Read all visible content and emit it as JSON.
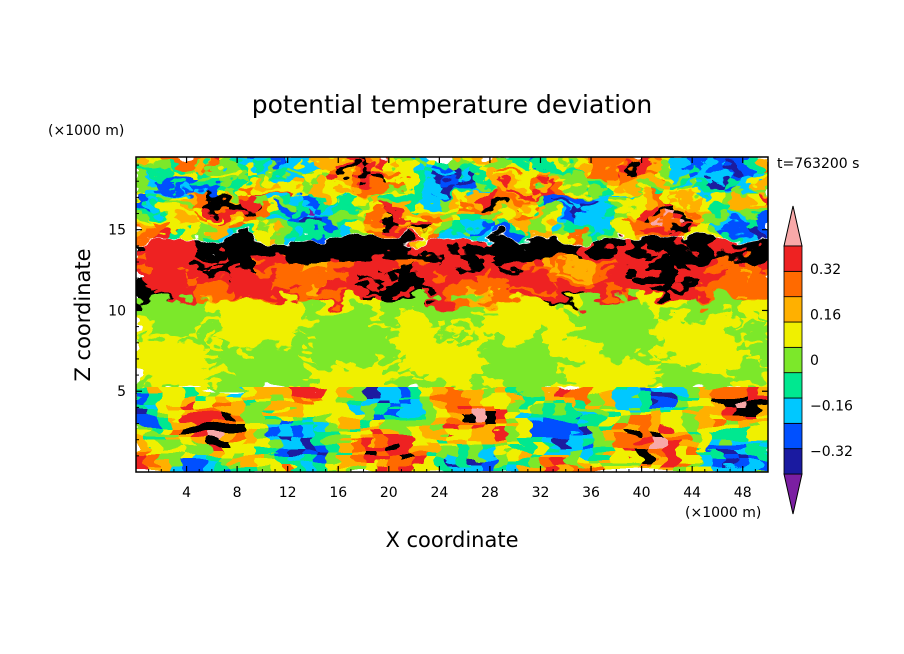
{
  "chart_data": {
    "type": "heatmap",
    "title": "potential temperature deviation",
    "xlabel": "X coordinate",
    "ylabel": "Z coordinate",
    "x_unit": "(×1000 m)",
    "y_unit": "(×1000 m)",
    "time_label": "t=763200 s",
    "xlim": [
      0,
      50
    ],
    "ylim": [
      0,
      19.5
    ],
    "x_ticks": [
      4,
      8,
      12,
      16,
      20,
      24,
      28,
      32,
      36,
      40,
      44,
      48
    ],
    "y_ticks": [
      5,
      10,
      15
    ],
    "colorbar": {
      "levels": [
        -0.4,
        -0.32,
        -0.24,
        -0.16,
        -0.08,
        0,
        0.08,
        0.16,
        0.24,
        0.32,
        0.4
      ],
      "tick_values": [
        0.32,
        0.16,
        0,
        -0.16,
        -0.32
      ],
      "tick_labels": [
        "0.32",
        "0.16",
        "0",
        "−0.16",
        "−0.32"
      ],
      "under_color": "#7b1fa2",
      "over_color": "#f8a8a8",
      "colors": [
        "#1a1aa0",
        "#0050ff",
        "#00c8ff",
        "#00e890",
        "#7ce82a",
        "#f0f000",
        "#ffb000",
        "#ff6a00",
        "#ee2222"
      ]
    },
    "layers": [
      {
        "z_range": [
          17,
          19.5
        ],
        "description_value": -0.45,
        "value_low": -0.45,
        "value_high": 0.45
      },
      {
        "z_range": [
          14.5,
          17
        ],
        "value_low": -0.45,
        "value_high": 0.45
      },
      {
        "z_range": [
          13.2,
          14.2
        ],
        "value_low": 0.28,
        "value_high": 0.4
      },
      {
        "z_range": [
          10.5,
          13
        ],
        "value_low": 0.12,
        "value_high": 0.4
      },
      {
        "z_range": [
          5,
          10.5
        ],
        "value_low": -0.08,
        "value_high": 0.08
      },
      {
        "z_range": [
          0,
          5
        ],
        "value_low": -0.45,
        "value_high": 0.45
      }
    ]
  }
}
